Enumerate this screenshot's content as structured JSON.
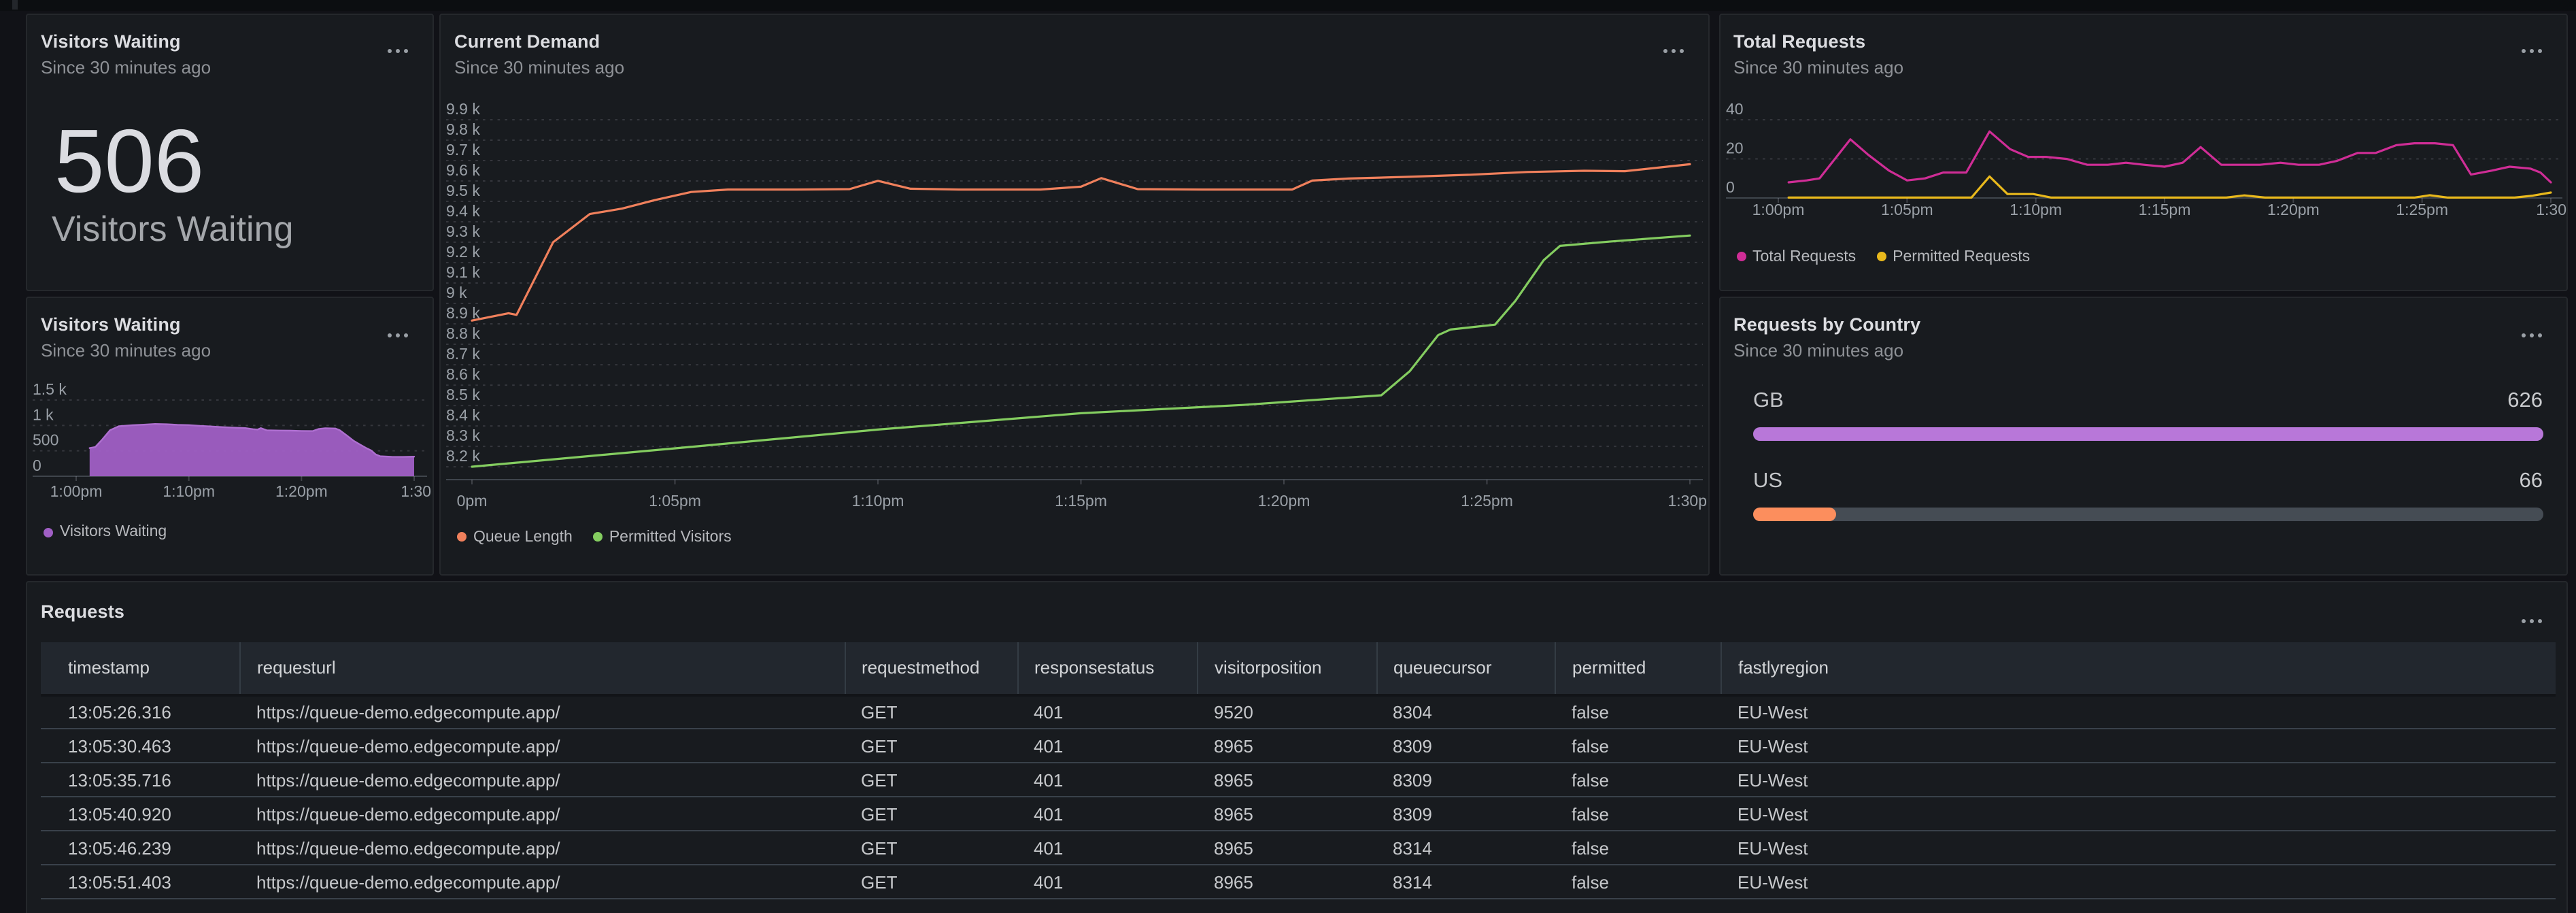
{
  "page": {
    "bg": "#111217"
  },
  "panels": {
    "visitors_stat": {
      "title": "Visitors Waiting",
      "subtitle": "Since 30 minutes ago",
      "value": "506",
      "value_label": "Visitors Waiting",
      "menu_icon": "kebab-menu"
    },
    "visitors_chart": {
      "title": "Visitors Waiting",
      "subtitle": "Since 30 minutes ago",
      "menu_icon": "kebab-menu"
    },
    "current_demand": {
      "title": "Current Demand",
      "subtitle": "Since 30 minutes ago",
      "menu_icon": "kebab-menu"
    },
    "total_requests": {
      "title": "Total Requests",
      "subtitle": "Since 30 minutes ago",
      "menu_icon": "kebab-menu"
    },
    "requests_by_country": {
      "title": "Requests by Country",
      "subtitle": "Since 30 minutes ago",
      "menu_icon": "kebab-menu",
      "track_color": "#454c54",
      "rows": [
        {
          "label": "GB",
          "value": "626",
          "pct": 100,
          "color": "#b877d9"
        },
        {
          "label": "US",
          "value": "66",
          "pct": 10.5,
          "color": "#fc8e5d"
        }
      ]
    },
    "requests_table": {
      "title": "Requests",
      "menu_icon": "kebab-menu",
      "columns": [
        "timestamp",
        "requesturl",
        "requestmethod",
        "responsestatus",
        "visitorposition",
        "queuecursor",
        "permitted",
        "fastlyregion"
      ],
      "rows": [
        [
          "13:05:26.316",
          "https://queue-demo.edgecompute.app/",
          "GET",
          "401",
          "9520",
          "8304",
          "false",
          "EU-West"
        ],
        [
          "13:05:30.463",
          "https://queue-demo.edgecompute.app/",
          "GET",
          "401",
          "8965",
          "8309",
          "false",
          "EU-West"
        ],
        [
          "13:05:35.716",
          "https://queue-demo.edgecompute.app/",
          "GET",
          "401",
          "8965",
          "8309",
          "false",
          "EU-West"
        ],
        [
          "13:05:40.920",
          "https://queue-demo.edgecompute.app/",
          "GET",
          "401",
          "8965",
          "8309",
          "false",
          "EU-West"
        ],
        [
          "13:05:46.239",
          "https://queue-demo.edgecompute.app/",
          "GET",
          "401",
          "8965",
          "8314",
          "false",
          "EU-West"
        ],
        [
          "13:05:51.403",
          "https://queue-demo.edgecompute.app/",
          "GET",
          "401",
          "8965",
          "8314",
          "false",
          "EU-West"
        ]
      ]
    }
  },
  "chart_data": [
    {
      "id": "visitors-waiting",
      "type": "area",
      "title": "Visitors Waiting",
      "x_range": [
        0,
        30
      ],
      "y_axis": {
        "top": 1500,
        "bottom": 0
      },
      "y_ticks": [
        {
          "v": 1500,
          "label": "1.5 k"
        },
        {
          "v": 1000,
          "label": "1 k"
        },
        {
          "v": 500,
          "label": "500"
        },
        {
          "v": 0,
          "label": "0"
        }
      ],
      "x_ticks": [
        {
          "v": 0,
          "label": "1:00pm"
        },
        {
          "v": 10,
          "label": "1:10pm"
        },
        {
          "v": 20,
          "label": "1:20pm"
        },
        {
          "v": 30,
          "label": "1:30"
        }
      ],
      "series": [
        {
          "name": "Visitors Waiting",
          "color": "#a05fc5",
          "stroke": "#ae6fd0",
          "fill": true,
          "points": [
            [
              1.2,
              555
            ],
            [
              1.7,
              575
            ],
            [
              2.3,
              720
            ],
            [
              3,
              905
            ],
            [
              3.8,
              985
            ],
            [
              5,
              1005
            ],
            [
              6,
              1015
            ],
            [
              7,
              1028
            ],
            [
              8,
              1022
            ],
            [
              9,
              1012
            ],
            [
              10,
              1006
            ],
            [
              11,
              992
            ],
            [
              12,
              980
            ],
            [
              13,
              968
            ],
            [
              14,
              956
            ],
            [
              15,
              948
            ],
            [
              15.7,
              928
            ],
            [
              16.1,
              920
            ],
            [
              16.4,
              948
            ],
            [
              16.9,
              906
            ],
            [
              18,
              900
            ],
            [
              19,
              896
            ],
            [
              20,
              891
            ],
            [
              21,
              889
            ],
            [
              21.5,
              929
            ],
            [
              22.1,
              946
            ],
            [
              23,
              941
            ],
            [
              23.4,
              906
            ],
            [
              24,
              805
            ],
            [
              24.6,
              702
            ],
            [
              25.2,
              625
            ],
            [
              25.8,
              548
            ],
            [
              26.2,
              506
            ],
            [
              26.6,
              428
            ],
            [
              27,
              393
            ],
            [
              28,
              382
            ],
            [
              29,
              380
            ],
            [
              30,
              387
            ]
          ]
        }
      ]
    },
    {
      "id": "current-demand",
      "type": "line",
      "title": "Current Demand",
      "x_range": [
        0,
        30
      ],
      "y_axis": {
        "top": 9900,
        "bottom": 8137
      },
      "y_ticks": [
        {
          "v": 9900,
          "label": "9.9 k"
        },
        {
          "v": 9800,
          "label": "9.8 k"
        },
        {
          "v": 9700,
          "label": "9.7 k"
        },
        {
          "v": 9600,
          "label": "9.6 k"
        },
        {
          "v": 9500,
          "label": "9.5 k"
        },
        {
          "v": 9400,
          "label": "9.4 k"
        },
        {
          "v": 9300,
          "label": "9.3 k"
        },
        {
          "v": 9200,
          "label": "9.2 k"
        },
        {
          "v": 9100,
          "label": "9.1 k"
        },
        {
          "v": 9000,
          "label": "9 k"
        },
        {
          "v": 8900,
          "label": "8.9 k"
        },
        {
          "v": 8800,
          "label": "8.8 k"
        },
        {
          "v": 8700,
          "label": "8.7 k"
        },
        {
          "v": 8600,
          "label": "8.6 k"
        },
        {
          "v": 8500,
          "label": "8.5 k"
        },
        {
          "v": 8400,
          "label": "8.4 k"
        },
        {
          "v": 8300,
          "label": "8.3 k"
        },
        {
          "v": 8200,
          "label": "8.2 k"
        }
      ],
      "x_ticks": [
        {
          "v": 0,
          "label": "0pm"
        },
        {
          "v": 5,
          "label": "1:05pm"
        },
        {
          "v": 10,
          "label": "1:10pm"
        },
        {
          "v": 15,
          "label": "1:15pm"
        },
        {
          "v": 20,
          "label": "1:20pm"
        },
        {
          "v": 25,
          "label": "1:25pm"
        },
        {
          "v": 30,
          "label": "1:30p"
        }
      ],
      "series": [
        {
          "name": "Queue Length",
          "color": "#f0805c",
          "points": [
            [
              0,
              8916
            ],
            [
              0.9,
              8952
            ],
            [
              1.1,
              8944
            ],
            [
              2,
              9300
            ],
            [
              2.9,
              9438
            ],
            [
              3.7,
              9465
            ],
            [
              4.5,
              9506
            ],
            [
              5.4,
              9546
            ],
            [
              6.3,
              9558
            ],
            [
              8,
              9558
            ],
            [
              9.3,
              9560
            ],
            [
              10,
              9601
            ],
            [
              10.8,
              9562
            ],
            [
              12,
              9558
            ],
            [
              14,
              9558
            ],
            [
              15,
              9572
            ],
            [
              15.5,
              9614
            ],
            [
              16.4,
              9560
            ],
            [
              18,
              9558
            ],
            [
              20.2,
              9558
            ],
            [
              20.7,
              9602
            ],
            [
              21.6,
              9612
            ],
            [
              23,
              9620
            ],
            [
              24.6,
              9631
            ],
            [
              26,
              9644
            ],
            [
              27.4,
              9650
            ],
            [
              28.4,
              9648
            ],
            [
              30,
              9682
            ]
          ]
        },
        {
          "name": "Permitted Visitors",
          "color": "#84cd60",
          "points": [
            [
              0,
              8200
            ],
            [
              5,
              8290
            ],
            [
              10,
              8382
            ],
            [
              15,
              8462
            ],
            [
              19,
              8503
            ],
            [
              22.4,
              8550
            ],
            [
              23.1,
              8668
            ],
            [
              23.8,
              8845
            ],
            [
              24.1,
              8872
            ],
            [
              25.2,
              8896
            ],
            [
              25.7,
              9012
            ],
            [
              26.4,
              9212
            ],
            [
              26.8,
              9282
            ],
            [
              28,
              9303
            ],
            [
              30,
              9333
            ]
          ]
        }
      ]
    },
    {
      "id": "total-requests",
      "type": "line",
      "title": "Total Requests",
      "x_range": [
        0,
        30
      ],
      "y_axis": {
        "top": 40,
        "bottom": 0
      },
      "y_ticks": [
        {
          "v": 40,
          "label": "40"
        },
        {
          "v": 20,
          "label": "20"
        },
        {
          "v": 0,
          "label": "0"
        }
      ],
      "x_ticks": [
        {
          "v": 0,
          "label": "1:00pm"
        },
        {
          "v": 5,
          "label": "1:05pm"
        },
        {
          "v": 10,
          "label": "1:10pm"
        },
        {
          "v": 15,
          "label": "1:15pm"
        },
        {
          "v": 20,
          "label": "1:20pm"
        },
        {
          "v": 25,
          "label": "1:25pm"
        },
        {
          "v": 30,
          "label": "1:30"
        }
      ],
      "series": [
        {
          "name": "Total Requests",
          "color": "#cf2d96",
          "points": [
            [
              0.4,
              8
            ],
            [
              1.1,
              9
            ],
            [
              1.6,
              10
            ],
            [
              2.8,
              30
            ],
            [
              3.5,
              22
            ],
            [
              4.3,
              14
            ],
            [
              5,
              9
            ],
            [
              5.7,
              10
            ],
            [
              6.4,
              13
            ],
            [
              7.3,
              13
            ],
            [
              8.2,
              34
            ],
            [
              9,
              25
            ],
            [
              9.7,
              21
            ],
            [
              10.4,
              21
            ],
            [
              11.2,
              20
            ],
            [
              12,
              17
            ],
            [
              12.8,
              17
            ],
            [
              13.5,
              18
            ],
            [
              14.2,
              17
            ],
            [
              15,
              16
            ],
            [
              15.7,
              18
            ],
            [
              16.4,
              26
            ],
            [
              17.2,
              17
            ],
            [
              18,
              17
            ],
            [
              18.7,
              17
            ],
            [
              19.5,
              18
            ],
            [
              20.2,
              17
            ],
            [
              21,
              17
            ],
            [
              21.7,
              19
            ],
            [
              22.5,
              23
            ],
            [
              23.2,
              23
            ],
            [
              24,
              27
            ],
            [
              24.7,
              28
            ],
            [
              25.5,
              28
            ],
            [
              26.2,
              27
            ],
            [
              26.9,
              12
            ],
            [
              27.7,
              14
            ],
            [
              28.4,
              16
            ],
            [
              29.2,
              15
            ],
            [
              29.6,
              13
            ],
            [
              30,
              8
            ]
          ]
        },
        {
          "name": "Permitted Requests",
          "color": "#e9b91c",
          "points": [
            [
              0.4,
              0.2
            ],
            [
              7.5,
              0.2
            ],
            [
              8.2,
              11
            ],
            [
              8.9,
              2
            ],
            [
              9.9,
              2
            ],
            [
              10.6,
              0.2
            ],
            [
              17.4,
              0.2
            ],
            [
              18.1,
              1.3
            ],
            [
              18.9,
              0.2
            ],
            [
              24.7,
              0.2
            ],
            [
              25.3,
              1.4
            ],
            [
              26,
              0.2
            ],
            [
              28.6,
              0.2
            ],
            [
              29.3,
              1.2
            ],
            [
              30,
              2.8
            ]
          ]
        }
      ]
    },
    {
      "id": "requests-by-country",
      "type": "bar",
      "title": "Requests by Country",
      "categories": [
        "GB",
        "US"
      ],
      "values": [
        626,
        66
      ],
      "max": 626,
      "colors": [
        "#b877d9",
        "#fc8e5d"
      ]
    }
  ]
}
